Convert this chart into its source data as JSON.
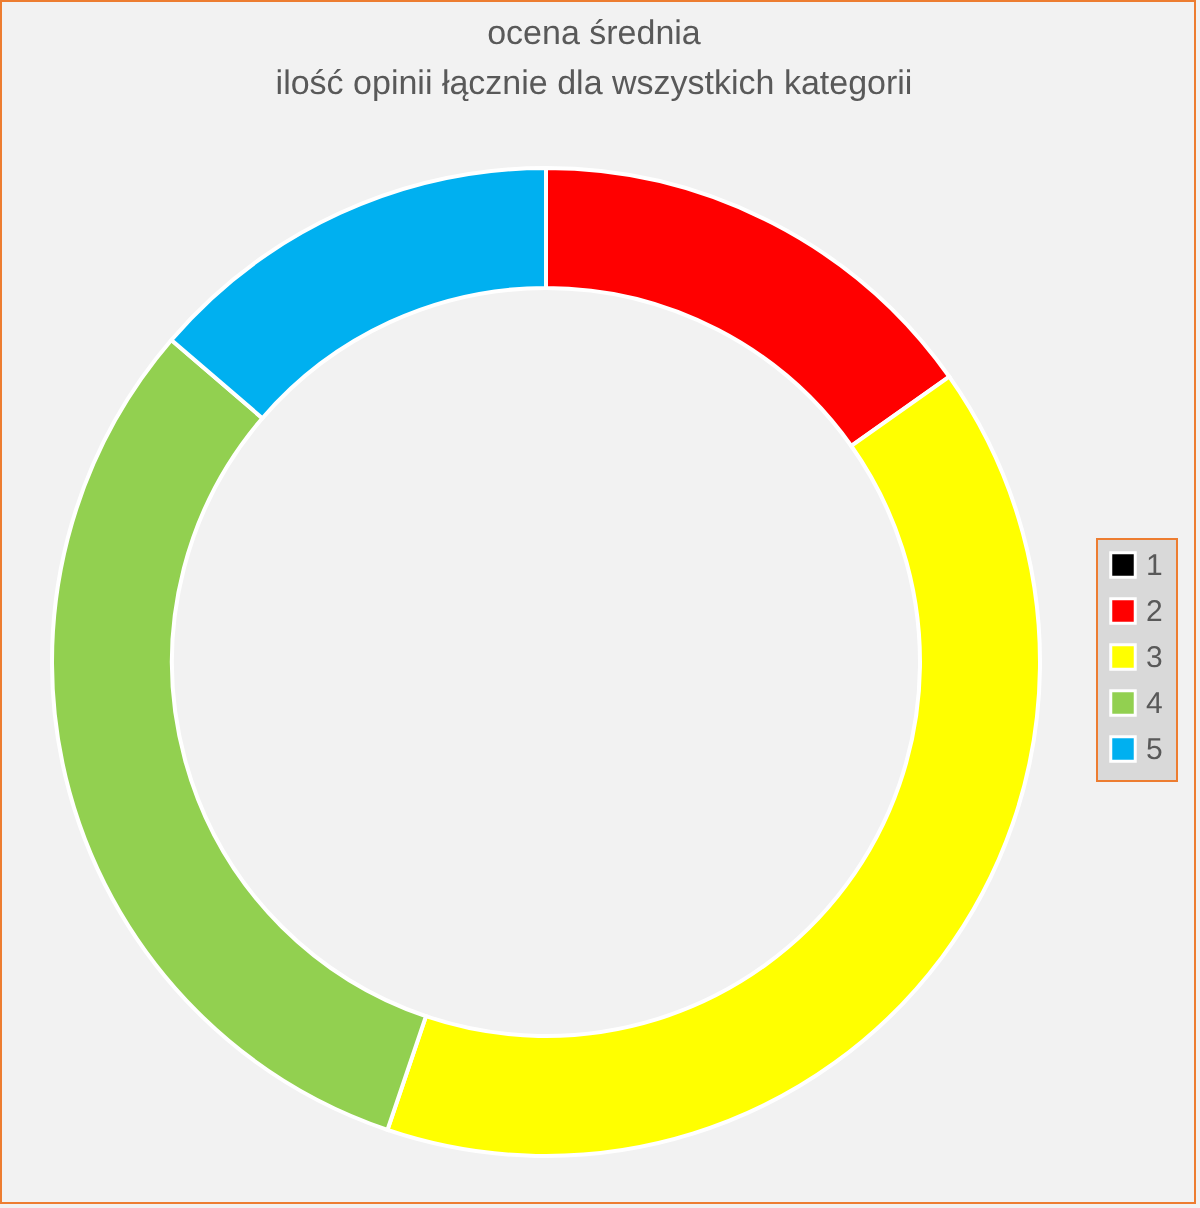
{
  "chart_data": {
    "type": "donut",
    "title": "ocena średnia",
    "subtitle": "ilość opinii łącznie dla wszystkich kategorii",
    "categories": [
      "1",
      "2",
      "3",
      "4",
      "5"
    ],
    "values": [
      0,
      15.2,
      40,
      31.1,
      13.7
    ],
    "colors": [
      "#000000",
      "#ff0000",
      "#ffff00",
      "#92d050",
      "#00b0f0"
    ],
    "legend": "right"
  }
}
